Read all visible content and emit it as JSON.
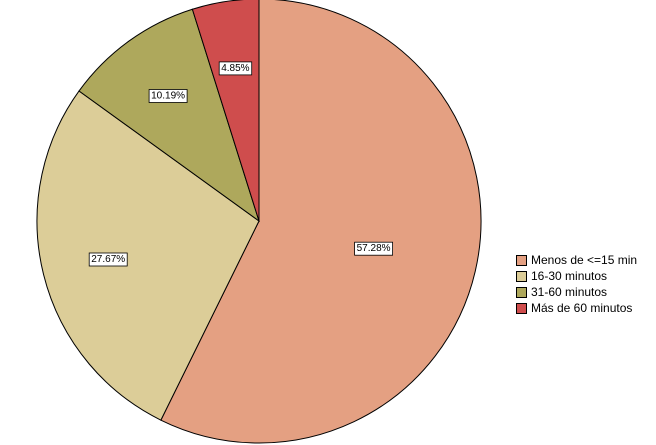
{
  "chart_data": {
    "type": "pie",
    "title": "",
    "slices": [
      {
        "label": "Menos de <=15 min",
        "value": 57.28,
        "display": "57.28%",
        "color": "#e4a082"
      },
      {
        "label": "16-30 minutos",
        "value": 27.67,
        "display": "27.67%",
        "color": "#dccd98"
      },
      {
        "label": "31-60 minutos",
        "value": 10.19,
        "display": "10.19%",
        "color": "#aea85c"
      },
      {
        "label": "Más de 60 minutos",
        "value": 4.85,
        "display": "4.85%",
        "color": "#cf4d4d"
      }
    ],
    "start": "12 o'clock",
    "direction": "clockwise",
    "legend": "right"
  }
}
